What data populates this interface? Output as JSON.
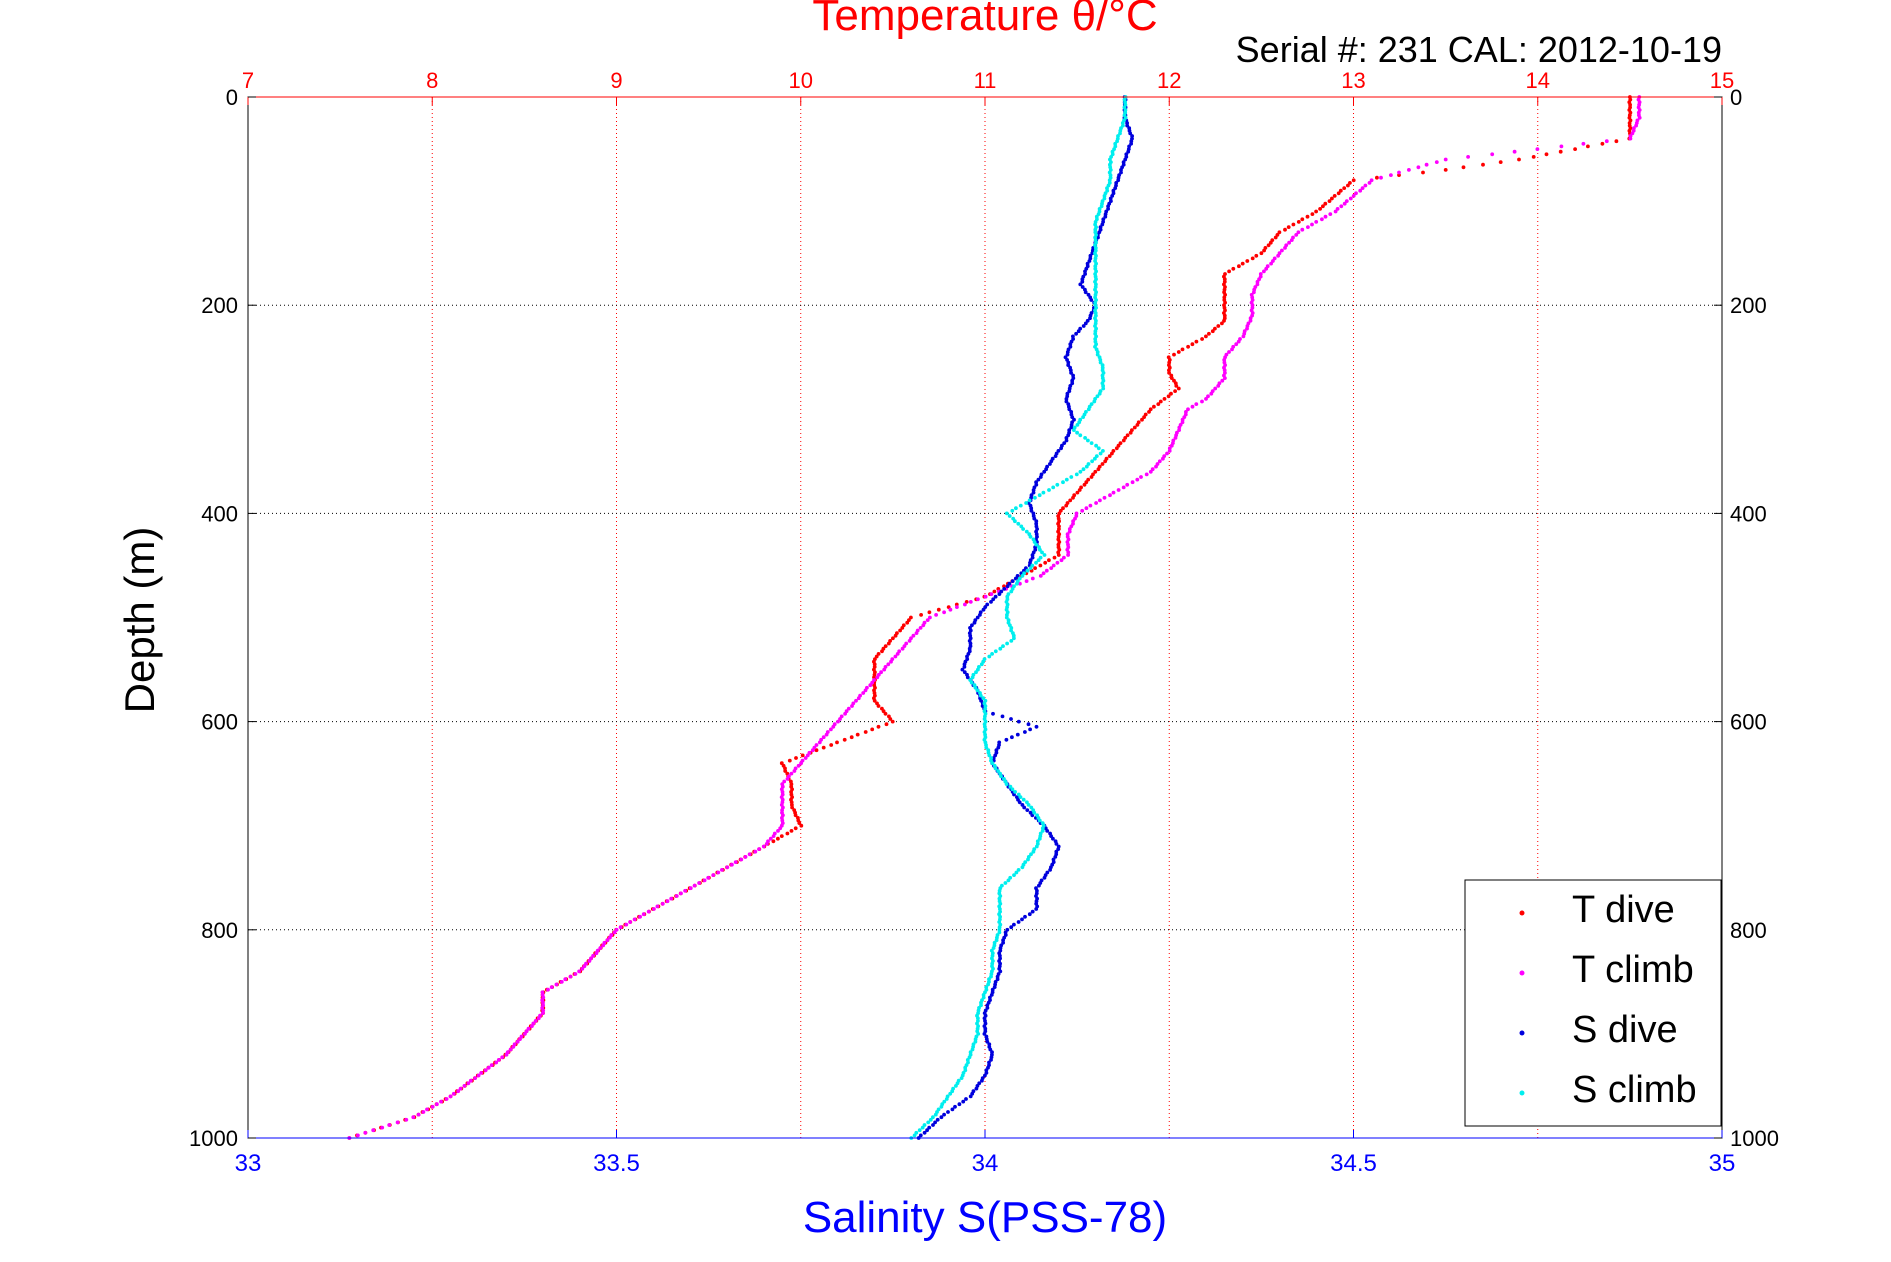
{
  "chart_data": {
    "type": "scatter",
    "title": "Temperature θ/°C",
    "subtitle": "Serial #: 231  CAL: 2012-10-19",
    "xlabel_bottom": "Salinity S(PSS-78)",
    "ylabel": "Depth (m)",
    "x_top": {
      "range": [
        7,
        15
      ],
      "ticks": [
        "7",
        "8",
        "9",
        "10",
        "11",
        "12",
        "13",
        "14",
        "15"
      ],
      "color": "#ff0000",
      "grid": "dotted"
    },
    "x_bottom": {
      "range": [
        33,
        35
      ],
      "ticks": [
        "33",
        "33.5",
        "34",
        "34.5",
        "35"
      ],
      "color": "#0000ff"
    },
    "y": {
      "range": [
        0,
        1000
      ],
      "reversed": true,
      "ticks": [
        "0",
        "200",
        "400",
        "600",
        "800",
        "1000"
      ],
      "grid": "dotted"
    },
    "legend": {
      "position": "bottom-right",
      "entries": [
        "T dive",
        "T climb",
        "S dive",
        "S climb"
      ]
    },
    "colors": {
      "T_dive": "#ff0000",
      "T_climb": "#ff00ff",
      "S_dive": "#0000dd",
      "S_climb": "#00eeee",
      "axes": "#000000"
    },
    "series": [
      {
        "name": "T dive",
        "axis": "top",
        "color": "#ff0000",
        "points": [
          [
            0,
            14.5
          ],
          [
            20,
            14.5
          ],
          [
            40,
            14.5
          ],
          [
            50,
            14.2
          ],
          [
            60,
            13.9
          ],
          [
            70,
            13.5
          ],
          [
            80,
            13.0
          ],
          [
            95,
            12.9
          ],
          [
            110,
            12.8
          ],
          [
            130,
            12.6
          ],
          [
            150,
            12.5
          ],
          [
            170,
            12.3
          ],
          [
            190,
            12.3
          ],
          [
            200,
            12.3
          ],
          [
            215,
            12.3
          ],
          [
            230,
            12.2
          ],
          [
            250,
            12.0
          ],
          [
            265,
            12.0
          ],
          [
            280,
            12.05
          ],
          [
            300,
            11.9
          ],
          [
            320,
            11.8
          ],
          [
            340,
            11.7
          ],
          [
            360,
            11.6
          ],
          [
            380,
            11.5
          ],
          [
            400,
            11.4
          ],
          [
            420,
            11.4
          ],
          [
            440,
            11.4
          ],
          [
            460,
            11.2
          ],
          [
            480,
            11.0
          ],
          [
            500,
            10.6
          ],
          [
            520,
            10.5
          ],
          [
            540,
            10.4
          ],
          [
            560,
            10.4
          ],
          [
            580,
            10.4
          ],
          [
            600,
            10.5
          ],
          [
            620,
            10.2
          ],
          [
            640,
            9.9
          ],
          [
            660,
            9.95
          ],
          [
            680,
            9.95
          ],
          [
            700,
            10.0
          ],
          [
            720,
            9.8
          ],
          [
            740,
            9.6
          ],
          [
            760,
            9.4
          ],
          [
            780,
            9.2
          ],
          [
            800,
            9.0
          ],
          [
            820,
            8.9
          ],
          [
            840,
            8.8
          ],
          [
            860,
            8.6
          ],
          [
            880,
            8.6
          ],
          [
            900,
            8.5
          ],
          [
            920,
            8.4
          ],
          [
            940,
            8.25
          ],
          [
            960,
            8.1
          ],
          [
            980,
            7.9
          ],
          [
            1000,
            7.55
          ]
        ]
      },
      {
        "name": "T climb",
        "axis": "top",
        "color": "#ff00ff",
        "points": [
          [
            0,
            14.55
          ],
          [
            20,
            14.55
          ],
          [
            40,
            14.5
          ],
          [
            50,
            14.0
          ],
          [
            60,
            13.5
          ],
          [
            70,
            13.3
          ],
          [
            80,
            13.1
          ],
          [
            95,
            13.0
          ],
          [
            110,
            12.9
          ],
          [
            130,
            12.7
          ],
          [
            150,
            12.6
          ],
          [
            170,
            12.5
          ],
          [
            190,
            12.45
          ],
          [
            210,
            12.45
          ],
          [
            230,
            12.4
          ],
          [
            250,
            12.3
          ],
          [
            270,
            12.3
          ],
          [
            290,
            12.2
          ],
          [
            300,
            12.1
          ],
          [
            320,
            12.05
          ],
          [
            340,
            12.0
          ],
          [
            360,
            11.9
          ],
          [
            380,
            11.7
          ],
          [
            400,
            11.5
          ],
          [
            420,
            11.45
          ],
          [
            440,
            11.45
          ],
          [
            460,
            11.3
          ],
          [
            480,
            11.0
          ],
          [
            500,
            10.7
          ],
          [
            520,
            10.6
          ],
          [
            540,
            10.5
          ],
          [
            560,
            10.4
          ],
          [
            580,
            10.3
          ],
          [
            600,
            10.2
          ],
          [
            620,
            10.1
          ],
          [
            640,
            10.0
          ],
          [
            660,
            9.9
          ],
          [
            680,
            9.9
          ],
          [
            700,
            9.9
          ],
          [
            720,
            9.8
          ],
          [
            740,
            9.6
          ],
          [
            760,
            9.4
          ],
          [
            780,
            9.2
          ],
          [
            800,
            9.0
          ],
          [
            820,
            8.9
          ],
          [
            840,
            8.8
          ],
          [
            860,
            8.6
          ],
          [
            880,
            8.6
          ],
          [
            900,
            8.5
          ],
          [
            920,
            8.4
          ],
          [
            940,
            8.25
          ],
          [
            960,
            8.1
          ],
          [
            980,
            7.9
          ],
          [
            1000,
            7.55
          ]
        ]
      },
      {
        "name": "S dive",
        "axis": "bottom",
        "color": "#0000dd",
        "points": [
          [
            0,
            34.19
          ],
          [
            20,
            34.19
          ],
          [
            40,
            34.2
          ],
          [
            60,
            34.19
          ],
          [
            80,
            34.18
          ],
          [
            100,
            34.17
          ],
          [
            120,
            34.16
          ],
          [
            140,
            34.15
          ],
          [
            160,
            34.14
          ],
          [
            180,
            34.13
          ],
          [
            200,
            34.15
          ],
          [
            215,
            34.14
          ],
          [
            230,
            34.12
          ],
          [
            250,
            34.11
          ],
          [
            270,
            34.12
          ],
          [
            290,
            34.11
          ],
          [
            310,
            34.12
          ],
          [
            330,
            34.11
          ],
          [
            350,
            34.09
          ],
          [
            370,
            34.07
          ],
          [
            390,
            34.06
          ],
          [
            410,
            34.07
          ],
          [
            430,
            34.07
          ],
          [
            450,
            34.06
          ],
          [
            470,
            34.03
          ],
          [
            490,
            34.0
          ],
          [
            510,
            33.98
          ],
          [
            530,
            33.98
          ],
          [
            550,
            33.97
          ],
          [
            570,
            33.99
          ],
          [
            590,
            34.0
          ],
          [
            605,
            34.07
          ],
          [
            620,
            34.02
          ],
          [
            640,
            34.01
          ],
          [
            660,
            34.03
          ],
          [
            680,
            34.05
          ],
          [
            700,
            34.08
          ],
          [
            720,
            34.1
          ],
          [
            740,
            34.09
          ],
          [
            760,
            34.07
          ],
          [
            780,
            34.07
          ],
          [
            800,
            34.03
          ],
          [
            820,
            34.02
          ],
          [
            840,
            34.02
          ],
          [
            860,
            34.01
          ],
          [
            880,
            34.0
          ],
          [
            900,
            34.0
          ],
          [
            920,
            34.01
          ],
          [
            940,
            34.0
          ],
          [
            960,
            33.98
          ],
          [
            980,
            33.94
          ],
          [
            1000,
            33.91
          ]
        ]
      },
      {
        "name": "S climb",
        "axis": "bottom",
        "color": "#00eeee",
        "points": [
          [
            0,
            34.19
          ],
          [
            20,
            34.19
          ],
          [
            40,
            34.18
          ],
          [
            60,
            34.17
          ],
          [
            80,
            34.17
          ],
          [
            100,
            34.16
          ],
          [
            120,
            34.15
          ],
          [
            140,
            34.15
          ],
          [
            160,
            34.15
          ],
          [
            180,
            34.15
          ],
          [
            200,
            34.15
          ],
          [
            220,
            34.15
          ],
          [
            240,
            34.15
          ],
          [
            260,
            34.16
          ],
          [
            280,
            34.16
          ],
          [
            300,
            34.14
          ],
          [
            320,
            34.12
          ],
          [
            340,
            34.16
          ],
          [
            360,
            34.13
          ],
          [
            380,
            34.08
          ],
          [
            400,
            34.03
          ],
          [
            420,
            34.06
          ],
          [
            440,
            34.08
          ],
          [
            460,
            34.05
          ],
          [
            480,
            34.03
          ],
          [
            500,
            34.03
          ],
          [
            520,
            34.04
          ],
          [
            540,
            34.0
          ],
          [
            560,
            33.98
          ],
          [
            580,
            34.0
          ],
          [
            600,
            34.0
          ],
          [
            620,
            34.0
          ],
          [
            640,
            34.01
          ],
          [
            660,
            34.03
          ],
          [
            680,
            34.06
          ],
          [
            700,
            34.08
          ],
          [
            720,
            34.07
          ],
          [
            740,
            34.05
          ],
          [
            760,
            34.02
          ],
          [
            780,
            34.02
          ],
          [
            800,
            34.02
          ],
          [
            820,
            34.01
          ],
          [
            840,
            34.01
          ],
          [
            860,
            34.0
          ],
          [
            880,
            33.99
          ],
          [
            900,
            33.99
          ],
          [
            920,
            33.98
          ],
          [
            940,
            33.97
          ],
          [
            960,
            33.95
          ],
          [
            980,
            33.93
          ],
          [
            1000,
            33.9
          ]
        ]
      }
    ]
  }
}
